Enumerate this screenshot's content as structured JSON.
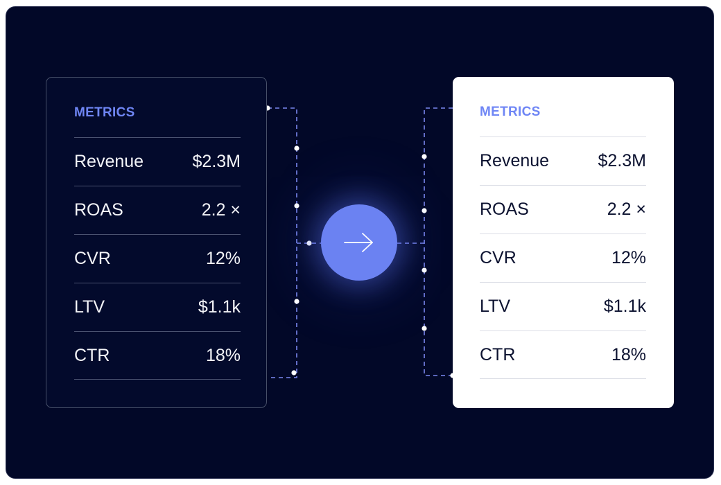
{
  "cards": {
    "source": {
      "heading": "METRICS",
      "rows": [
        {
          "label": "Revenue",
          "value": "$2.3M"
        },
        {
          "label": "ROAS",
          "value": "2.2 ×"
        },
        {
          "label": "CVR",
          "value": "12%"
        },
        {
          "label": "LTV",
          "value": "$1.1k"
        },
        {
          "label": "CTR",
          "value": "18%"
        }
      ]
    },
    "target": {
      "heading": "METRICS",
      "rows": [
        {
          "label": "Revenue",
          "value": "$2.3M"
        },
        {
          "label": "ROAS",
          "value": "2.2 ×"
        },
        {
          "label": "CVR",
          "value": "12%"
        },
        {
          "label": "LTV",
          "value": "$1.1k"
        },
        {
          "label": "CTR",
          "value": "18%"
        }
      ]
    }
  },
  "transfer": {
    "icon": "arrow-right-icon"
  },
  "colors": {
    "background": "#020828",
    "accent": "#6b82f2",
    "heading": "#6f86f5",
    "connector": "#7a88f0"
  }
}
